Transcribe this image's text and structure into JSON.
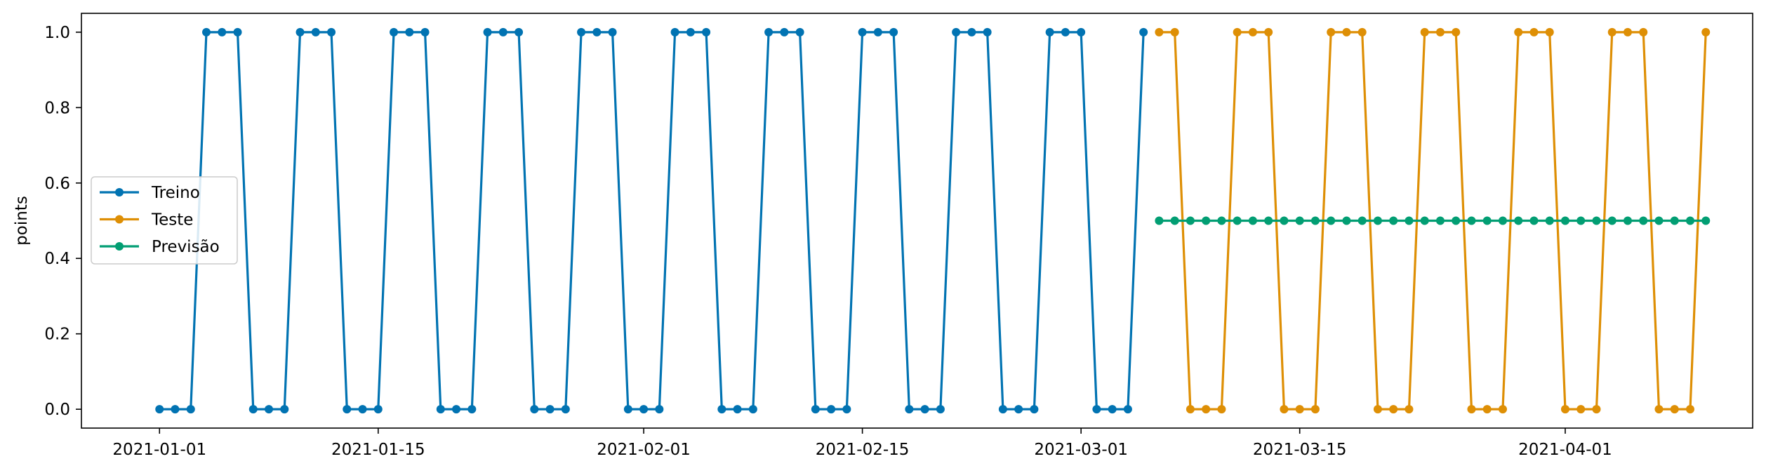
{
  "chart_data": {
    "type": "line",
    "title": "",
    "xlabel": "",
    "ylabel": "points",
    "x_start": "2021-01-01",
    "xlim": [
      "2020-12-27",
      "2021-04-13"
    ],
    "ylim": [
      -0.05,
      1.05
    ],
    "grid": false,
    "legend": {
      "placement": "center-left"
    },
    "x_ticks": [
      "2021-01-01",
      "2021-01-15",
      "2021-02-01",
      "2021-02-15",
      "2021-03-01",
      "2021-03-15",
      "2021-04-01"
    ],
    "y_ticks": [
      0.0,
      0.2,
      0.4,
      0.6,
      0.8,
      1.0
    ],
    "y_tick_labels": [
      "0.0",
      "0.2",
      "0.4",
      "0.6",
      "0.8",
      "1.0"
    ],
    "series": [
      {
        "name": "Treino",
        "color": "#0173b2",
        "start": "2021-01-01",
        "values": [
          0,
          0,
          0,
          1,
          1,
          1,
          0,
          0,
          0,
          1,
          1,
          1,
          0,
          0,
          0,
          1,
          1,
          1,
          0,
          0,
          0,
          1,
          1,
          1,
          0,
          0,
          0,
          1,
          1,
          1,
          0,
          0,
          0,
          1,
          1,
          1,
          0,
          0,
          0,
          1,
          1,
          1,
          0,
          0,
          0,
          1,
          1,
          1,
          0,
          0,
          0,
          1,
          1,
          1,
          0,
          0,
          0,
          1,
          1,
          1,
          0,
          0,
          0,
          1
        ]
      },
      {
        "name": "Teste",
        "color": "#de8f05",
        "start": "2021-03-06",
        "values": [
          1,
          1,
          0,
          0,
          0,
          1,
          1,
          1,
          0,
          0,
          0,
          1,
          1,
          1,
          0,
          0,
          0,
          1,
          1,
          1,
          0,
          0,
          0,
          1,
          1,
          1,
          0,
          0,
          0,
          1,
          1,
          1,
          0,
          0,
          0,
          1
        ]
      },
      {
        "name": "Previsão",
        "color": "#029e73",
        "start": "2021-03-06",
        "values": [
          0.5,
          0.5,
          0.5,
          0.5,
          0.5,
          0.5,
          0.5,
          0.5,
          0.5,
          0.5,
          0.5,
          0.5,
          0.5,
          0.5,
          0.5,
          0.5,
          0.5,
          0.5,
          0.5,
          0.5,
          0.5,
          0.5,
          0.5,
          0.5,
          0.5,
          0.5,
          0.5,
          0.5,
          0.5,
          0.5,
          0.5,
          0.5,
          0.5,
          0.5,
          0.5,
          0.5
        ]
      }
    ]
  }
}
